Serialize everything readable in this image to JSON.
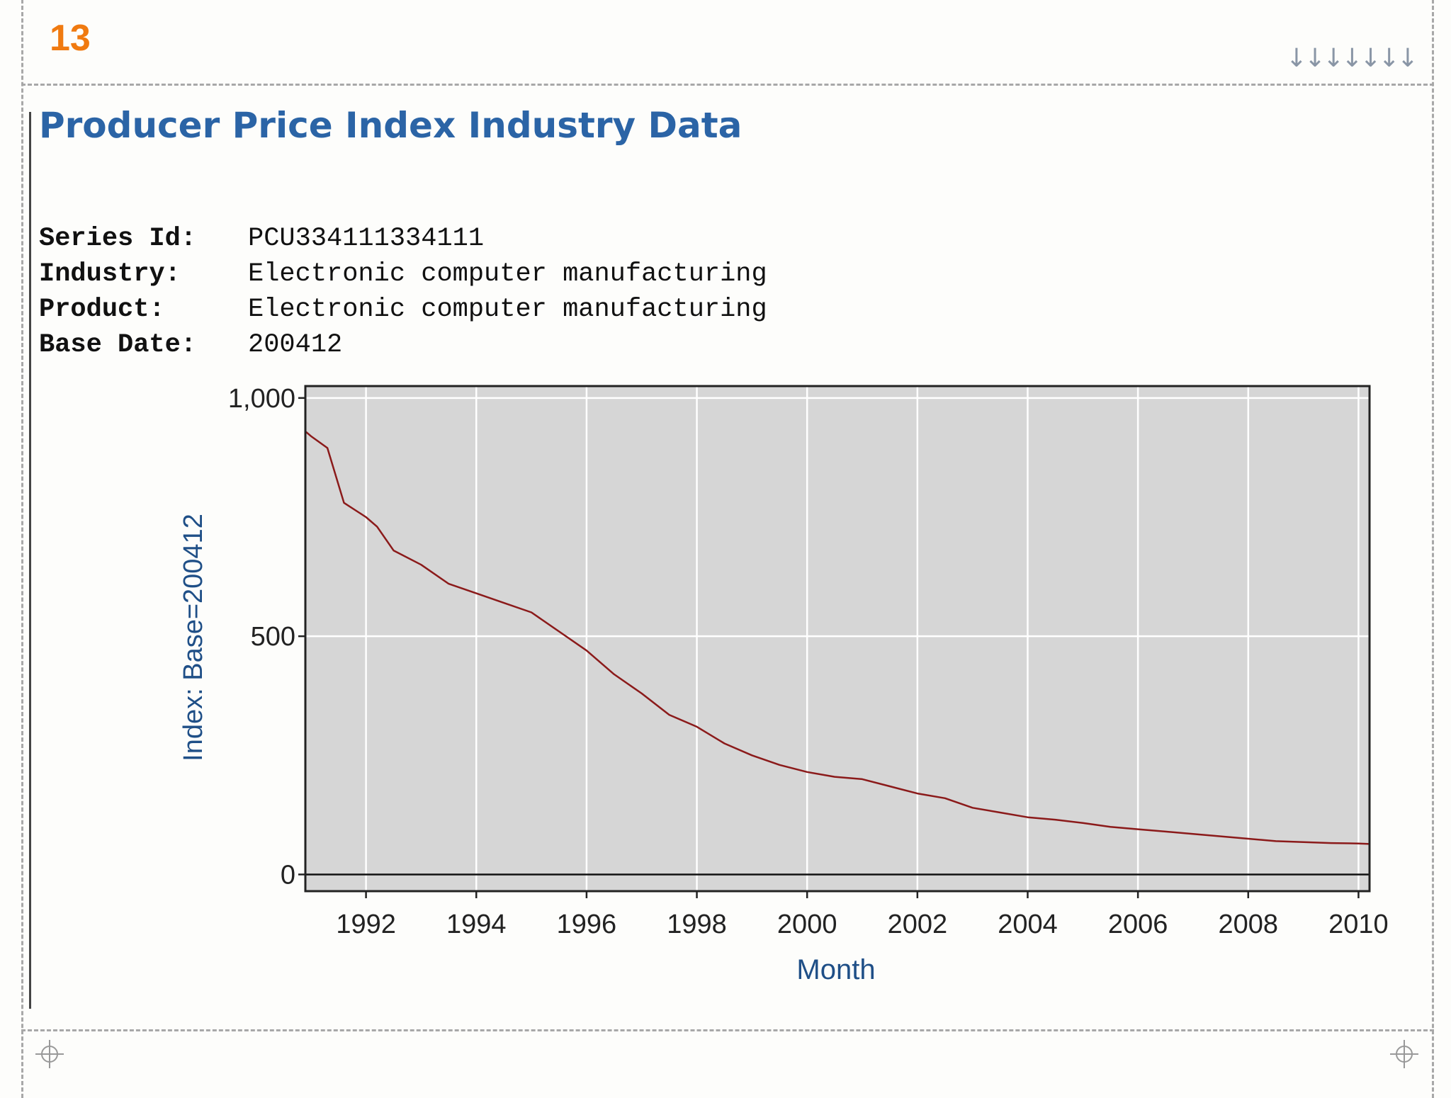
{
  "slide": {
    "page_number": "13",
    "nav_arrows": "↓↓↓↓↓↓↓"
  },
  "ppi": {
    "title": "Producer Price Index Industry Data",
    "meta": [
      {
        "label": "Series Id:",
        "value": "PCU334111334111"
      },
      {
        "label": "Industry:",
        "value": "Electronic computer manufacturing"
      },
      {
        "label": "Product:",
        "value": "Electronic computer manufacturing"
      },
      {
        "label": "Base Date:",
        "value": "200412"
      }
    ]
  },
  "chart_data": {
    "type": "line",
    "xlabel": "Month",
    "ylabel": "Index: Base=200412",
    "xlim": [
      1990.9,
      2010.2
    ],
    "ylim": [
      -35,
      1025
    ],
    "xticks": [
      1992,
      1994,
      1996,
      1998,
      2000,
      2002,
      2004,
      2006,
      2008,
      2010
    ],
    "yticks": [
      0,
      500,
      1000
    ],
    "ytick_labels": [
      "0",
      "500",
      "1,000"
    ],
    "grid": true,
    "line_color": "#8b1a1a",
    "plot_bg": "#d6d6d6",
    "series": [
      {
        "x": [
          1990.9,
          1991.0,
          1991.3,
          1991.6,
          1992.0,
          1992.2,
          1992.5,
          1993.0,
          1993.5,
          1994.0,
          1994.5,
          1995.0,
          1995.5,
          1996.0,
          1996.5,
          1997.0,
          1997.5,
          1998.0,
          1998.5,
          1999.0,
          1999.5,
          2000.0,
          2000.5,
          2001.0,
          2001.5,
          2002.0,
          2002.5,
          2003.0,
          2003.5,
          2004.0,
          2004.5,
          2005.0,
          2005.5,
          2006.0,
          2006.5,
          2007.0,
          2007.5,
          2008.0,
          2008.5,
          2009.0,
          2009.5,
          2010.0,
          2010.2
        ],
        "y": [
          930,
          920,
          895,
          780,
          750,
          730,
          680,
          650,
          610,
          590,
          570,
          550,
          510,
          470,
          420,
          380,
          335,
          310,
          275,
          250,
          230,
          215,
          205,
          200,
          185,
          170,
          160,
          140,
          130,
          120,
          115,
          108,
          100,
          95,
          90,
          85,
          80,
          75,
          70,
          68,
          66,
          65,
          64
        ]
      }
    ]
  }
}
